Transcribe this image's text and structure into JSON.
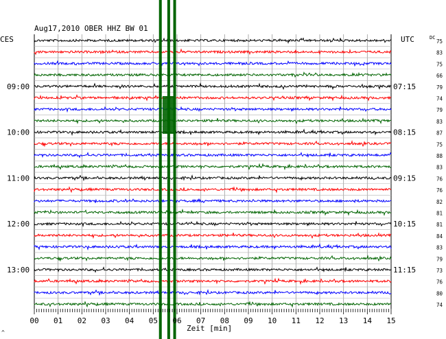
{
  "chart_data": {
    "type": "line",
    "title": "Aug17,2010   OBER HHZ BW 01",
    "left_axis_label": "CES",
    "right_axis_label": "UTC",
    "dc_label": "DC",
    "xlabel": "Zeit [min]",
    "x_ticks": [
      "00",
      "01",
      "02",
      "03",
      "04",
      "05",
      "06",
      "07",
      "08",
      "09",
      "10",
      "11",
      "12",
      "13",
      "14",
      "15"
    ],
    "xlim": [
      0,
      15
    ],
    "grid": true,
    "trace_count": 24,
    "trace_colors": [
      "#000000",
      "#ff0000",
      "#0000ff",
      "#006400"
    ],
    "left_hour_labels": [
      {
        "trace": 4,
        "label": "09:00"
      },
      {
        "trace": 8,
        "label": "10:00"
      },
      {
        "trace": 12,
        "label": "11:00"
      },
      {
        "trace": 16,
        "label": "12:00"
      },
      {
        "trace": 20,
        "label": "13:00"
      }
    ],
    "right_hour_labels": [
      {
        "trace": 4,
        "label": "07:15"
      },
      {
        "trace": 8,
        "label": "08:15"
      },
      {
        "trace": 12,
        "label": "09:15"
      },
      {
        "trace": 16,
        "label": "10:15"
      },
      {
        "trace": 20,
        "label": "11:15"
      }
    ],
    "dc_values": [
      "75",
      "83",
      "75",
      "66",
      "79",
      "74",
      "79",
      "83",
      "87",
      "75",
      "88",
      "83",
      "76",
      "76",
      "82",
      "81",
      "81",
      "84",
      "83",
      "79",
      "73",
      "76",
      "80",
      "74"
    ],
    "event": {
      "color": "#006400",
      "minutes": [
        5.3,
        5.65,
        5.9
      ],
      "full_height": true
    },
    "footer_mark": "^"
  }
}
